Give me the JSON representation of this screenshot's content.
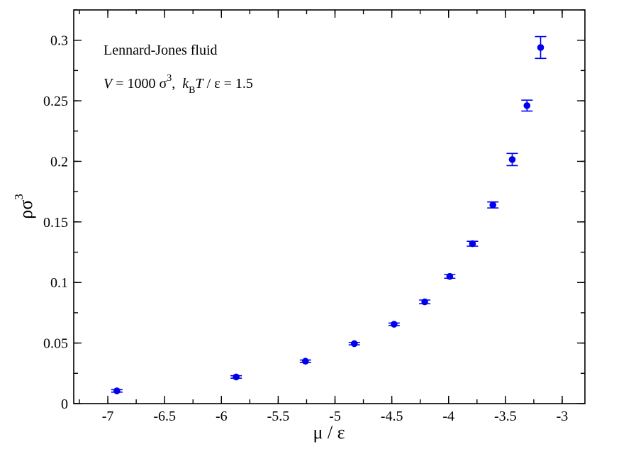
{
  "chart_data": {
    "type": "scatter",
    "xlabel": "μ / ε",
    "ylabel_base": "ρσ",
    "ylabel_exp": "3",
    "xlim": [
      -7.3,
      -2.8
    ],
    "ylim": [
      0,
      0.325
    ],
    "xticks": [
      {
        "value": -7,
        "label": "-7"
      },
      {
        "value": -6.5,
        "label": "-6.5"
      },
      {
        "value": -6,
        "label": "-6"
      },
      {
        "value": -5.5,
        "label": "-5.5"
      },
      {
        "value": -5,
        "label": "-5"
      },
      {
        "value": -4.5,
        "label": "-4.5"
      },
      {
        "value": -4,
        "label": "-4"
      },
      {
        "value": -3.5,
        "label": "-3.5"
      },
      {
        "value": -3,
        "label": "-3"
      }
    ],
    "yticks": [
      {
        "value": 0,
        "label": "0"
      },
      {
        "value": 0.05,
        "label": "0.05"
      },
      {
        "value": 0.1,
        "label": "0.1"
      },
      {
        "value": 0.15,
        "label": "0.15"
      },
      {
        "value": 0.2,
        "label": "0.2"
      },
      {
        "value": 0.25,
        "label": "0.25"
      },
      {
        "value": 0.3,
        "label": "0.3"
      }
    ],
    "minor_x_step": 0.25,
    "minor_y_step": 0.025,
    "grid": false,
    "marker_color": "#0000ee",
    "annotations": {
      "line1": "Lennard-Jones fluid",
      "line2": {
        "v": "V",
        "eq1": " = 1000 σ",
        "exp": "3",
        "sep": ",  ",
        "k": "k",
        "sub": "B",
        "t": "T",
        "rest": " / ε = 1.5"
      }
    },
    "points": [
      {
        "x": -6.92,
        "y": 0.0105,
        "err": 0.001
      },
      {
        "x": -5.87,
        "y": 0.022,
        "err": 0.001
      },
      {
        "x": -5.26,
        "y": 0.035,
        "err": 0.001
      },
      {
        "x": -4.83,
        "y": 0.0495,
        "err": 0.001
      },
      {
        "x": -4.48,
        "y": 0.0655,
        "err": 0.001
      },
      {
        "x": -4.21,
        "y": 0.084,
        "err": 0.0015
      },
      {
        "x": -3.99,
        "y": 0.105,
        "err": 0.0015
      },
      {
        "x": -3.79,
        "y": 0.132,
        "err": 0.002
      },
      {
        "x": -3.61,
        "y": 0.164,
        "err": 0.0025
      },
      {
        "x": -3.44,
        "y": 0.2015,
        "err": 0.005
      },
      {
        "x": -3.31,
        "y": 0.246,
        "err": 0.0045
      },
      {
        "x": -3.19,
        "y": 0.294,
        "err": 0.009
      }
    ]
  }
}
